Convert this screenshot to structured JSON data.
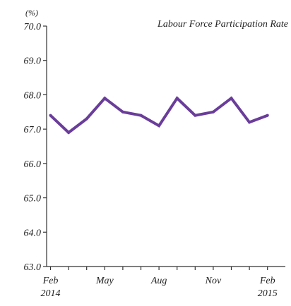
{
  "chart_data": {
    "type": "line",
    "title": "Labour Force Participation Rate",
    "unit_label": "(%)",
    "xlabel": "",
    "ylabel": "",
    "ylim": [
      63.0,
      70.0
    ],
    "y_ticks": [
      "63.0",
      "64.0",
      "65.0",
      "66.0",
      "67.0",
      "68.0",
      "69.0",
      "70.0"
    ],
    "x": [
      "Feb 2014",
      "Mar 2014",
      "Apr 2014",
      "May 2014",
      "Jun 2014",
      "Jul 2014",
      "Aug 2014",
      "Sep 2014",
      "Oct 2014",
      "Nov 2014",
      "Dec 2014",
      "Jan 2015",
      "Feb 2015"
    ],
    "x_tick_labels": [
      {
        "index": 0,
        "line1": "Feb",
        "line2": "2014"
      },
      {
        "index": 3,
        "line1": "May",
        "line2": ""
      },
      {
        "index": 6,
        "line1": "Aug",
        "line2": ""
      },
      {
        "index": 9,
        "line1": "Nov",
        "line2": ""
      },
      {
        "index": 12,
        "line1": "Feb",
        "line2": "2015"
      }
    ],
    "series": [
      {
        "values": [
          67.4,
          66.9,
          67.3,
          67.9,
          67.5,
          67.4,
          67.1,
          67.9,
          67.4,
          67.5,
          67.9,
          67.2,
          67.4
        ],
        "color": "#6a3d9a"
      }
    ],
    "grid": false,
    "legend": "none"
  }
}
